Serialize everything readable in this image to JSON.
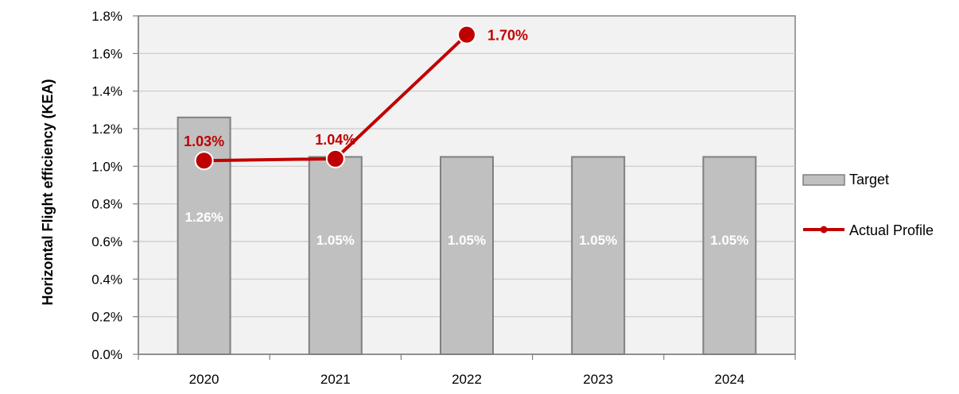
{
  "chart_data": {
    "type": "bar",
    "ylabel": "Horizontal Flight efficiency (KEA)",
    "xlabel": "",
    "categories": [
      "2020",
      "2021",
      "2022",
      "2023",
      "2024"
    ],
    "ylim": [
      0,
      1.8
    ],
    "y_ticks": [
      0.0,
      0.2,
      0.4,
      0.6,
      0.8,
      1.0,
      1.2,
      1.4,
      1.6,
      1.8
    ],
    "y_tick_labels": [
      "0.0%",
      "0.2%",
      "0.4%",
      "0.6%",
      "0.8%",
      "1.0%",
      "1.2%",
      "1.4%",
      "1.6%",
      "1.8%"
    ],
    "grid": true,
    "legend_position": "right",
    "series": [
      {
        "name": "Target",
        "type": "bar",
        "values": [
          1.26,
          1.05,
          1.05,
          1.05,
          1.05
        ],
        "labels": [
          "1.26%",
          "1.05%",
          "1.05%",
          "1.05%",
          "1.05%"
        ],
        "color": "#c0c0c0"
      },
      {
        "name": "Actual Profile",
        "type": "line",
        "values": [
          1.03,
          1.04,
          1.7,
          null,
          null
        ],
        "labels": [
          "1.03%",
          "1.04%",
          "1.70%",
          "",
          ""
        ],
        "color": "#c00000"
      }
    ],
    "colors": {
      "plot_background": "#f2f2f2",
      "gridline": "#c8c8c8",
      "bar_border": "#808080",
      "axis": "#808080"
    }
  }
}
